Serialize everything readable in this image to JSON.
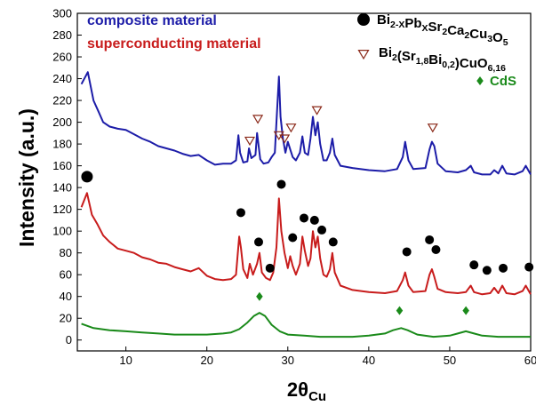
{
  "chart_data": {
    "type": "line",
    "title": "",
    "xlabel": "2θ",
    "xlabel_sub": "Cu",
    "ylabel": "Intensity (a.u.)",
    "xlim": [
      4,
      60
    ],
    "ylim": [
      -10,
      300
    ],
    "xticks": [
      10,
      20,
      30,
      40,
      50,
      60
    ],
    "yticks": [
      0,
      20,
      40,
      60,
      80,
      100,
      120,
      140,
      160,
      180,
      200,
      220,
      240,
      260,
      280,
      300
    ],
    "grid": false,
    "series": [
      {
        "name": "composite material",
        "color": "#1c1ca8",
        "points": [
          [
            4.5,
            235
          ],
          [
            5.3,
            246
          ],
          [
            6,
            220
          ],
          [
            6.6,
            210
          ],
          [
            7.2,
            200
          ],
          [
            8,
            196
          ],
          [
            9,
            194
          ],
          [
            10,
            193
          ],
          [
            11,
            189
          ],
          [
            12,
            185
          ],
          [
            13,
            182
          ],
          [
            14,
            178
          ],
          [
            15,
            176
          ],
          [
            16,
            174
          ],
          [
            17,
            171
          ],
          [
            18,
            169
          ],
          [
            19,
            170
          ],
          [
            20,
            165
          ],
          [
            21,
            161
          ],
          [
            22,
            162
          ],
          [
            23,
            162
          ],
          [
            23.6,
            165
          ],
          [
            23.9,
            188
          ],
          [
            24.1,
            172
          ],
          [
            24.5,
            163
          ],
          [
            25,
            164
          ],
          [
            25.2,
            176
          ],
          [
            25.5,
            167
          ],
          [
            26,
            170
          ],
          [
            26.2,
            190
          ],
          [
            26.6,
            166
          ],
          [
            27,
            162
          ],
          [
            27.6,
            163
          ],
          [
            28,
            168
          ],
          [
            28.4,
            172
          ],
          [
            28.6,
            200
          ],
          [
            28.9,
            242
          ],
          [
            29.1,
            205
          ],
          [
            29.4,
            185
          ],
          [
            29.7,
            172
          ],
          [
            30,
            182
          ],
          [
            30.3,
            175
          ],
          [
            30.6,
            168
          ],
          [
            31,
            165
          ],
          [
            31.5,
            172
          ],
          [
            31.8,
            187
          ],
          [
            32.1,
            172
          ],
          [
            32.5,
            170
          ],
          [
            32.8,
            185
          ],
          [
            33.1,
            205
          ],
          [
            33.4,
            188
          ],
          [
            33.7,
            200
          ],
          [
            34,
            180
          ],
          [
            34.4,
            165
          ],
          [
            34.8,
            165
          ],
          [
            35.2,
            172
          ],
          [
            35.5,
            185
          ],
          [
            35.8,
            170
          ],
          [
            36.5,
            160
          ],
          [
            38,
            158
          ],
          [
            40,
            156
          ],
          [
            42,
            155
          ],
          [
            43.5,
            157
          ],
          [
            44.2,
            168
          ],
          [
            44.5,
            182
          ],
          [
            44.9,
            165
          ],
          [
            45.5,
            157
          ],
          [
            47,
            158
          ],
          [
            47.5,
            175
          ],
          [
            47.8,
            182
          ],
          [
            48.1,
            178
          ],
          [
            48.5,
            162
          ],
          [
            49.5,
            155
          ],
          [
            51,
            154
          ],
          [
            52,
            156
          ],
          [
            52.6,
            160
          ],
          [
            53,
            154
          ],
          [
            54,
            152
          ],
          [
            55,
            152
          ],
          [
            55.5,
            156
          ],
          [
            56,
            153
          ],
          [
            56.5,
            160
          ],
          [
            57,
            153
          ],
          [
            58,
            152
          ],
          [
            59,
            155
          ],
          [
            59.4,
            160
          ],
          [
            60,
            152
          ]
        ]
      },
      {
        "name": "superconducting material",
        "color": "#c81c1c",
        "points": [
          [
            4.5,
            122
          ],
          [
            5.2,
            135
          ],
          [
            5.8,
            115
          ],
          [
            6.5,
            106
          ],
          [
            7.2,
            96
          ],
          [
            8,
            90
          ],
          [
            9,
            84
          ],
          [
            10,
            82
          ],
          [
            11,
            80
          ],
          [
            12,
            76
          ],
          [
            13,
            74
          ],
          [
            14,
            71
          ],
          [
            15,
            70
          ],
          [
            16,
            67
          ],
          [
            17,
            65
          ],
          [
            18,
            63
          ],
          [
            19,
            66
          ],
          [
            20,
            59
          ],
          [
            21,
            56
          ],
          [
            22,
            55
          ],
          [
            23,
            56
          ],
          [
            23.6,
            60
          ],
          [
            24,
            95
          ],
          [
            24.2,
            85
          ],
          [
            24.5,
            65
          ],
          [
            25,
            57
          ],
          [
            25.3,
            70
          ],
          [
            25.7,
            60
          ],
          [
            26.2,
            70
          ],
          [
            26.5,
            80
          ],
          [
            26.8,
            62
          ],
          [
            27.3,
            57
          ],
          [
            27.8,
            55
          ],
          [
            28.2,
            62
          ],
          [
            28.6,
            85
          ],
          [
            28.9,
            130
          ],
          [
            29.2,
            100
          ],
          [
            29.6,
            80
          ],
          [
            30,
            66
          ],
          [
            30.3,
            77
          ],
          [
            30.6,
            68
          ],
          [
            31,
            60
          ],
          [
            31.5,
            70
          ],
          [
            31.8,
            95
          ],
          [
            32.1,
            82
          ],
          [
            32.5,
            68
          ],
          [
            32.8,
            75
          ],
          [
            33.1,
            100
          ],
          [
            33.4,
            85
          ],
          [
            33.7,
            95
          ],
          [
            34,
            75
          ],
          [
            34.4,
            60
          ],
          [
            34.8,
            58
          ],
          [
            35.2,
            65
          ],
          [
            35.5,
            80
          ],
          [
            35.8,
            62
          ],
          [
            36.5,
            50
          ],
          [
            38,
            46
          ],
          [
            40,
            44
          ],
          [
            42,
            43
          ],
          [
            43.5,
            45
          ],
          [
            44.2,
            55
          ],
          [
            44.5,
            62
          ],
          [
            44.9,
            50
          ],
          [
            45.5,
            44
          ],
          [
            47,
            45
          ],
          [
            47.5,
            60
          ],
          [
            47.8,
            65
          ],
          [
            48.1,
            58
          ],
          [
            48.5,
            47
          ],
          [
            49.5,
            44
          ],
          [
            51,
            43
          ],
          [
            52,
            44
          ],
          [
            52.6,
            50
          ],
          [
            53,
            44
          ],
          [
            54,
            42
          ],
          [
            55,
            43
          ],
          [
            55.5,
            48
          ],
          [
            56,
            43
          ],
          [
            56.5,
            50
          ],
          [
            57,
            43
          ],
          [
            58,
            42
          ],
          [
            59,
            45
          ],
          [
            59.4,
            50
          ],
          [
            60,
            42
          ]
        ]
      },
      {
        "name": "CdS",
        "color": "#1a8a1a",
        "points": [
          [
            4.5,
            15
          ],
          [
            6,
            11
          ],
          [
            8,
            9
          ],
          [
            10,
            8
          ],
          [
            12,
            7
          ],
          [
            14,
            6
          ],
          [
            16,
            5
          ],
          [
            18,
            5
          ],
          [
            20,
            5
          ],
          [
            22,
            6
          ],
          [
            23,
            7
          ],
          [
            24,
            10
          ],
          [
            25,
            16
          ],
          [
            25.8,
            22
          ],
          [
            26.5,
            25
          ],
          [
            27.2,
            22
          ],
          [
            28,
            14
          ],
          [
            29,
            8
          ],
          [
            30,
            5
          ],
          [
            32,
            4
          ],
          [
            34,
            3
          ],
          [
            36,
            3
          ],
          [
            38,
            3
          ],
          [
            40,
            4
          ],
          [
            42,
            6
          ],
          [
            43,
            9
          ],
          [
            44,
            11
          ],
          [
            44.8,
            9
          ],
          [
            46,
            5
          ],
          [
            48,
            3
          ],
          [
            50,
            4
          ],
          [
            51,
            6
          ],
          [
            52,
            8
          ],
          [
            53,
            6
          ],
          [
            54,
            4
          ],
          [
            56,
            3
          ],
          [
            58,
            3
          ],
          [
            60,
            3
          ]
        ]
      }
    ],
    "legend": {
      "placement": "top-right",
      "entries": [
        {
          "marker": "circle",
          "color": "#000000",
          "formula": [
            [
              "Bi",
              ""
            ],
            [
              "",
              "2-X"
            ],
            [
              "Pb",
              ""
            ],
            [
              "",
              "X"
            ],
            [
              "Sr",
              ""
            ],
            [
              "",
              "2"
            ],
            [
              "Ca",
              ""
            ],
            [
              "",
              "2"
            ],
            [
              "Cu",
              ""
            ],
            [
              "",
              "3"
            ],
            [
              "O",
              ""
            ],
            [
              "",
              "5"
            ]
          ]
        },
        {
          "marker": "triangle-down",
          "color": "#8b2a1a",
          "formula": [
            [
              "Bi",
              ""
            ],
            [
              "",
              "2"
            ],
            [
              "(Sr",
              ""
            ],
            [
              "",
              "1,8"
            ],
            [
              "Bi",
              ""
            ],
            [
              "",
              "0,2"
            ],
            [
              ")CuO",
              ""
            ],
            [
              "",
              "6,16"
            ]
          ]
        },
        {
          "marker": "diamond",
          "color": "#1a8a1a",
          "label": "CdS"
        }
      ]
    },
    "annotations": {
      "circles": [
        [
          5.2,
          150
        ],
        [
          24.2,
          117
        ],
        [
          26.4,
          90
        ],
        [
          27.8,
          66
        ],
        [
          29.2,
          143
        ],
        [
          30.6,
          94
        ],
        [
          32,
          112
        ],
        [
          33.3,
          110
        ],
        [
          34.2,
          101
        ],
        [
          35.6,
          90
        ],
        [
          44.7,
          81
        ],
        [
          47.5,
          92
        ],
        [
          48.3,
          83
        ],
        [
          53,
          69
        ],
        [
          54.6,
          64
        ],
        [
          56.6,
          66
        ],
        [
          59.8,
          67
        ]
      ],
      "triangles": [
        [
          25.3,
          183
        ],
        [
          26.3,
          203
        ],
        [
          28.9,
          188
        ],
        [
          29.6,
          185
        ],
        [
          30.4,
          195
        ],
        [
          33.6,
          211
        ],
        [
          47.9,
          195
        ]
      ],
      "diamonds": [
        [
          26.5,
          40
        ],
        [
          43.8,
          27
        ],
        [
          52,
          27
        ]
      ]
    },
    "series_labels": [
      {
        "text": "composite material",
        "color": "#1c1ca8"
      },
      {
        "text": "superconducting material",
        "color": "#c81c1c"
      }
    ]
  }
}
